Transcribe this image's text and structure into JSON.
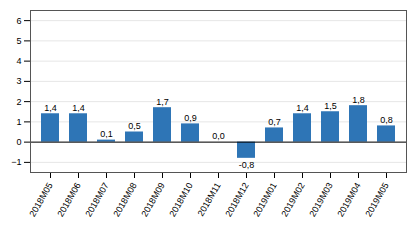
{
  "chart_data": {
    "type": "bar",
    "categories": [
      "2018M05",
      "2018M06",
      "2018M07",
      "2018M08",
      "2018M09",
      "2018M10",
      "2018M11",
      "2018M12",
      "2019M01",
      "2019M02",
      "2019M03",
      "2019M04",
      "2019M05"
    ],
    "values": [
      1.4,
      1.4,
      0.1,
      0.5,
      1.7,
      0.9,
      0.0,
      -0.8,
      0.7,
      1.4,
      1.5,
      1.8,
      0.8
    ],
    "value_labels": [
      "1,4",
      "1,4",
      "0,1",
      "0,5",
      "1,7",
      "0,9",
      "0,0",
      "-0,8",
      "0,7",
      "1,4",
      "1,5",
      "1,8",
      "0,8"
    ],
    "color": "#2e75b6",
    "ylim": [
      -1.5,
      6.5
    ],
    "yticks": [
      -1,
      0,
      1,
      2,
      3,
      4,
      5,
      6
    ],
    "grid": true,
    "data_labels": true
  }
}
